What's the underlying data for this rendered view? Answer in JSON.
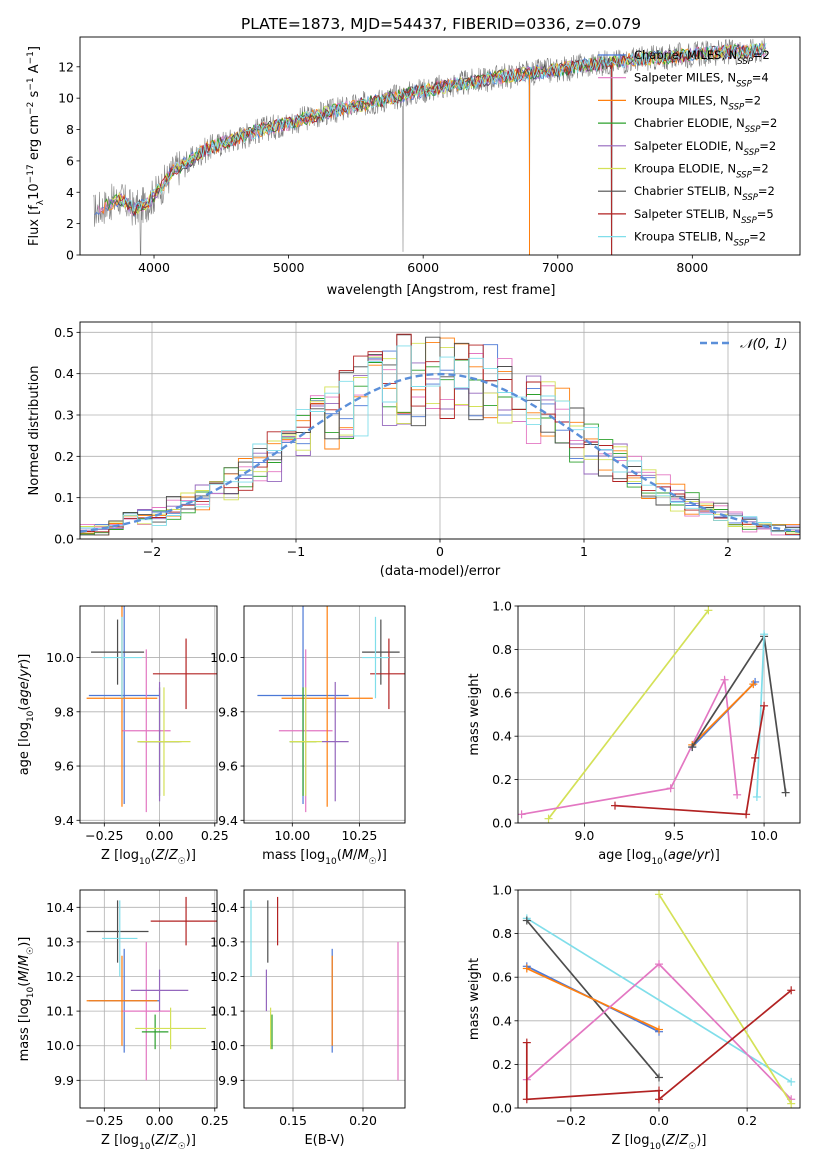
{
  "figure_title": "PLATE=1873, MJD=54437, FIBERID=0336, z=0.079",
  "colors": {
    "chabrier_miles": "#4c78d6",
    "salpeter_miles": "#e377c2",
    "kroupa_miles": "#ff7f0e",
    "chabrier_elodie": "#2ca02c",
    "salpeter_elodie": "#9467bd",
    "kroupa_elodie": "#d4e157",
    "chabrier_stelib": "#4d4d4d",
    "salpeter_stelib": "#b22222",
    "kroupa_stelib": "#80deea",
    "data_spectrum": "#808080",
    "normal_curve": "#5b8fd9"
  },
  "chart_data": [
    {
      "id": "spectrum",
      "type": "line",
      "title": "PLATE=1873, MJD=54437, FIBERID=0336, z=0.079",
      "xlabel": "wavelength [Angstrom, rest frame]",
      "ylabel": "Flux [fλ10⁻¹⁷ erg cm⁻² s⁻¹ A⁻¹]",
      "xlim": [
        3450,
        8800
      ],
      "ylim": [
        0,
        13.9
      ],
      "xticks": [
        4000,
        5000,
        6000,
        7000,
        8000
      ],
      "yticks": [
        0,
        2,
        4,
        6,
        8,
        10,
        12
      ],
      "grid": false,
      "legend_position": "right",
      "spectrum_anchor": {
        "x": [
          3550,
          3650,
          3750,
          3850,
          3950,
          4050,
          4150,
          4250,
          4400,
          4600,
          4800,
          5000,
          5200,
          5400,
          5600,
          5800,
          6000,
          6200,
          6400,
          6600,
          6800,
          7000,
          7200,
          7400,
          7600,
          7800,
          8000,
          8200,
          8400,
          8550
        ],
        "y": [
          2.8,
          3.2,
          3.6,
          2.9,
          3.3,
          4.3,
          5.4,
          5.9,
          6.8,
          7.4,
          8.0,
          8.4,
          8.9,
          9.3,
          9.7,
          10.1,
          10.5,
          10.8,
          11.1,
          11.4,
          11.6,
          11.8,
          12.1,
          12.3,
          12.5,
          12.6,
          12.8,
          12.9,
          13.0,
          13.1
        ]
      },
      "spectrum_dips": [
        {
          "x": 3900,
          "y": 0
        },
        {
          "x": 5850,
          "y": 0.2
        },
        {
          "x": 6790,
          "y": 0
        },
        {
          "x": 7400,
          "y": 0
        }
      ],
      "series": [
        {
          "name": "Chabrier MILES, N_SSP=2",
          "color_key": "chabrier_miles"
        },
        {
          "name": "Salpeter MILES, N_SSP=4",
          "color_key": "salpeter_miles"
        },
        {
          "name": "Kroupa MILES, N_SSP=2",
          "color_key": "kroupa_miles"
        },
        {
          "name": "Chabrier ELODIE, N_SSP=2",
          "color_key": "chabrier_elodie"
        },
        {
          "name": "Salpeter ELODIE, N_SSP=2",
          "color_key": "salpeter_elodie"
        },
        {
          "name": "Kroupa ELODIE, N_SSP=2",
          "color_key": "kroupa_elodie"
        },
        {
          "name": "Chabrier STELIB, N_SSP=2",
          "color_key": "chabrier_stelib"
        },
        {
          "name": "Salpeter STELIB, N_SSP=5",
          "color_key": "salpeter_stelib"
        },
        {
          "name": "Kroupa STELIB, N_SSP=2",
          "color_key": "kroupa_stelib"
        }
      ]
    },
    {
      "id": "residuals",
      "type": "line",
      "xlabel": "(data-model)/error",
      "ylabel": "Normed distribution",
      "xlim": [
        -2.5,
        2.5
      ],
      "ylim": [
        0,
        0.525
      ],
      "xticks": [
        -2,
        -1,
        0,
        1,
        2
      ],
      "yticks": [
        0.0,
        0.1,
        0.2,
        0.3,
        0.4,
        0.5
      ],
      "grid": true,
      "legend_position": "top-right",
      "legend_entry": "𝒩(0, 1)",
      "bin_width": 0.1,
      "bin_start": -2.5
    },
    {
      "id": "z_vs_age",
      "type": "scatter",
      "xlabel": "Z [log₁₀(Z/Z☉)]",
      "ylabel": "age  [log₁₀(age/yr)]",
      "xlim": [
        -0.36,
        0.26
      ],
      "ylim": [
        9.39,
        10.19
      ],
      "xticks": [
        -0.25,
        0.0,
        0.25
      ],
      "yticks": [
        9.4,
        9.6,
        9.8,
        10.0
      ],
      "grid": true,
      "points": [
        {
          "color_key": "chabrier_miles",
          "x": -0.16,
          "xerr": 0.16,
          "y": 9.86,
          "yerr": 0.4
        },
        {
          "color_key": "salpeter_miles",
          "x": -0.06,
          "xerr": 0.11,
          "y": 9.73,
          "yerr": 0.3
        },
        {
          "color_key": "kroupa_miles",
          "x": -0.17,
          "xerr": 0.16,
          "y": 9.85,
          "yerr": 0.4
        },
        {
          "color_key": "chabrier_elodie",
          "x": 0.0,
          "xerr": 0.09,
          "y": 9.69,
          "yerr": 0.2
        },
        {
          "color_key": "salpeter_elodie",
          "x": 0.0,
          "xerr": 0.1,
          "y": 9.69,
          "yerr": 0.22
        },
        {
          "color_key": "kroupa_elodie",
          "x": 0.02,
          "xerr": 0.12,
          "y": 9.69,
          "yerr": 0.2
        },
        {
          "color_key": "chabrier_stelib",
          "x": -0.19,
          "xerr": 0.12,
          "y": 10.02,
          "yerr": 0.12
        },
        {
          "color_key": "salpeter_stelib",
          "x": 0.12,
          "xerr": 0.15,
          "y": 9.94,
          "yerr": 0.13
        },
        {
          "color_key": "kroupa_stelib",
          "x": -0.17,
          "xerr": 0.09,
          "y": 10.0,
          "yerr": 0.15
        }
      ]
    },
    {
      "id": "mass_vs_age",
      "type": "scatter",
      "xlabel": "mass [log₁₀(M/M☉)]",
      "ylabel": "",
      "xlim": [
        9.82,
        10.42
      ],
      "ylim": [
        9.39,
        10.19
      ],
      "xticks": [
        10.0,
        10.25
      ],
      "yticks": [
        9.4,
        9.6,
        9.8,
        10.0
      ],
      "grid": true,
      "points": [
        {
          "color_key": "chabrier_miles",
          "x": 10.04,
          "xerr": 0.17,
          "y": 9.86,
          "yerr": 0.4
        },
        {
          "color_key": "salpeter_miles",
          "x": 10.05,
          "xerr": 0.1,
          "y": 9.73,
          "yerr": 0.3
        },
        {
          "color_key": "kroupa_miles",
          "x": 10.13,
          "xerr": 0.17,
          "y": 9.85,
          "yerr": 0.4
        },
        {
          "color_key": "chabrier_elodie",
          "x": 10.04,
          "xerr": 0.05,
          "y": 9.69,
          "yerr": 0.2
        },
        {
          "color_key": "salpeter_elodie",
          "x": 10.16,
          "xerr": 0.05,
          "y": 9.69,
          "yerr": 0.22
        },
        {
          "color_key": "kroupa_elodie",
          "x": 10.05,
          "xerr": 0.06,
          "y": 9.69,
          "yerr": 0.2
        },
        {
          "color_key": "chabrier_stelib",
          "x": 10.33,
          "xerr": 0.07,
          "y": 10.02,
          "yerr": 0.12
        },
        {
          "color_key": "salpeter_stelib",
          "x": 10.36,
          "xerr": 0.07,
          "y": 9.94,
          "yerr": 0.13
        },
        {
          "color_key": "kroupa_stelib",
          "x": 10.31,
          "xerr": 0.05,
          "y": 10.0,
          "yerr": 0.15
        }
      ]
    },
    {
      "id": "age_vs_weight",
      "type": "line",
      "xlabel": "age  [log₁₀(age/yr)]",
      "ylabel": "mass weight",
      "xlim": [
        8.63,
        10.2
      ],
      "ylim": [
        0,
        1
      ],
      "xticks": [
        9.0,
        9.5,
        10.0
      ],
      "yticks": [
        0.0,
        0.2,
        0.4,
        0.6,
        0.8,
        1.0
      ],
      "grid": true,
      "series": [
        {
          "color_key": "kroupa_elodie",
          "x": [
            8.8,
            9.69
          ],
          "y": [
            0.02,
            0.98
          ]
        },
        {
          "color_key": "salpeter_miles",
          "x": [
            8.65,
            9.48,
            9.78,
            9.85
          ],
          "y": [
            0.04,
            0.16,
            0.66,
            0.13
          ]
        },
        {
          "color_key": "chabrier_miles",
          "x": [
            9.6,
            9.95
          ],
          "y": [
            0.35,
            0.65
          ]
        },
        {
          "color_key": "kroupa_miles",
          "x": [
            9.6,
            9.94
          ],
          "y": [
            0.36,
            0.64
          ]
        },
        {
          "color_key": "chabrier_stelib",
          "x": [
            9.6,
            10.0,
            10.12
          ],
          "y": [
            0.35,
            0.86,
            0.14
          ]
        },
        {
          "color_key": "kroupa_stelib",
          "x": [
            9.96,
            10.0
          ],
          "y": [
            0.12,
            0.87
          ]
        },
        {
          "color_key": "salpeter_stelib",
          "x": [
            9.17,
            9.9,
            9.95,
            10.0
          ],
          "y": [
            0.08,
            0.04,
            0.3,
            0.54
          ]
        }
      ]
    },
    {
      "id": "z_vs_mass",
      "type": "scatter",
      "xlabel": "Z [log₁₀(Z/Z☉)]",
      "ylabel": "mass [log₁₀(M/M☉)]",
      "xlim": [
        -0.36,
        0.26
      ],
      "ylim": [
        9.82,
        10.45
      ],
      "xticks": [
        -0.25,
        0.0,
        0.25
      ],
      "yticks": [
        9.9,
        10.0,
        10.1,
        10.2,
        10.3,
        10.4
      ],
      "grid": true,
      "points": [
        {
          "color_key": "chabrier_miles",
          "x": -0.16,
          "xerr": 0.16,
          "y": 10.13,
          "yerr": 0.15
        },
        {
          "color_key": "salpeter_miles",
          "x": -0.06,
          "xerr": 0.11,
          "y": 10.1,
          "yerr": 0.2
        },
        {
          "color_key": "kroupa_miles",
          "x": -0.17,
          "xerr": 0.16,
          "y": 10.13,
          "yerr": 0.13
        },
        {
          "color_key": "chabrier_elodie",
          "x": -0.02,
          "xerr": 0.06,
          "y": 10.04,
          "yerr": 0.05
        },
        {
          "color_key": "salpeter_elodie",
          "x": 0.0,
          "xerr": 0.13,
          "y": 10.16,
          "yerr": 0.06
        },
        {
          "color_key": "kroupa_elodie",
          "x": 0.05,
          "xerr": 0.16,
          "y": 10.05,
          "yerr": 0.06
        },
        {
          "color_key": "chabrier_stelib",
          "x": -0.19,
          "xerr": 0.14,
          "y": 10.33,
          "yerr": 0.09
        },
        {
          "color_key": "salpeter_stelib",
          "x": 0.12,
          "xerr": 0.16,
          "y": 10.36,
          "yerr": 0.07
        },
        {
          "color_key": "kroupa_stelib",
          "x": -0.18,
          "xerr": 0.08,
          "y": 10.31,
          "yerr": 0.11
        }
      ]
    },
    {
      "id": "ebv_vs_mass",
      "type": "scatter",
      "xlabel": "E(B-V)",
      "ylabel": "",
      "xlim": [
        0.115,
        0.23
      ],
      "ylim": [
        9.82,
        10.45
      ],
      "xticks": [
        0.15,
        0.2
      ],
      "yticks": [
        9.9,
        10.0,
        10.1,
        10.2,
        10.3,
        10.4
      ],
      "grid": true,
      "points": [
        {
          "color_key": "chabrier_miles",
          "x": 0.178,
          "y": 10.13,
          "yerr": 0.15
        },
        {
          "color_key": "salpeter_miles",
          "x": 0.225,
          "y": 10.1,
          "yerr": 0.2
        },
        {
          "color_key": "kroupa_miles",
          "x": 0.178,
          "y": 10.13,
          "yerr": 0.13
        },
        {
          "color_key": "chabrier_elodie",
          "x": 0.135,
          "y": 10.04,
          "yerr": 0.05
        },
        {
          "color_key": "salpeter_elodie",
          "x": 0.131,
          "y": 10.16,
          "yerr": 0.06
        },
        {
          "color_key": "kroupa_elodie",
          "x": 0.134,
          "y": 10.05,
          "yerr": 0.06
        },
        {
          "color_key": "chabrier_stelib",
          "x": 0.132,
          "y": 10.33,
          "yerr": 0.09
        },
        {
          "color_key": "salpeter_stelib",
          "x": 0.139,
          "y": 10.36,
          "yerr": 0.07
        },
        {
          "color_key": "kroupa_stelib",
          "x": 0.12,
          "y": 10.31,
          "yerr": 0.11
        }
      ]
    },
    {
      "id": "z_vs_weight",
      "type": "line",
      "xlabel": "Z [log₁₀(Z/Z☉)]",
      "ylabel": "mass weight",
      "xlim": [
        -0.32,
        0.32
      ],
      "ylim": [
        0,
        1
      ],
      "xticks": [
        -0.2,
        0.0,
        0.2
      ],
      "yticks": [
        0.0,
        0.2,
        0.4,
        0.6,
        0.8,
        1.0
      ],
      "grid": true,
      "series": [
        {
          "color_key": "kroupa_stelib",
          "x": [
            -0.3,
            0.3
          ],
          "y": [
            0.87,
            0.12
          ]
        },
        {
          "color_key": "chabrier_stelib",
          "x": [
            -0.3,
            0.0
          ],
          "y": [
            0.86,
            0.14
          ]
        },
        {
          "color_key": "chabrier_miles",
          "x": [
            -0.3,
            0.0
          ],
          "y": [
            0.65,
            0.35
          ]
        },
        {
          "color_key": "kroupa_miles",
          "x": [
            -0.3,
            0.0
          ],
          "y": [
            0.64,
            0.36
          ]
        },
        {
          "color_key": "salpeter_miles",
          "x": [
            -0.3,
            0.0,
            0.3
          ],
          "y": [
            0.13,
            0.66,
            0.04
          ]
        },
        {
          "color_key": "kroupa_elodie",
          "x": [
            0.0,
            0.3
          ],
          "y": [
            0.98,
            0.02
          ]
        },
        {
          "color_key": "salpeter_stelib",
          "x": [
            -0.3,
            -0.3,
            0.0,
            0.0,
            0.3
          ],
          "y": [
            0.3,
            0.04,
            0.08,
            0.04,
            0.54
          ]
        }
      ]
    }
  ]
}
